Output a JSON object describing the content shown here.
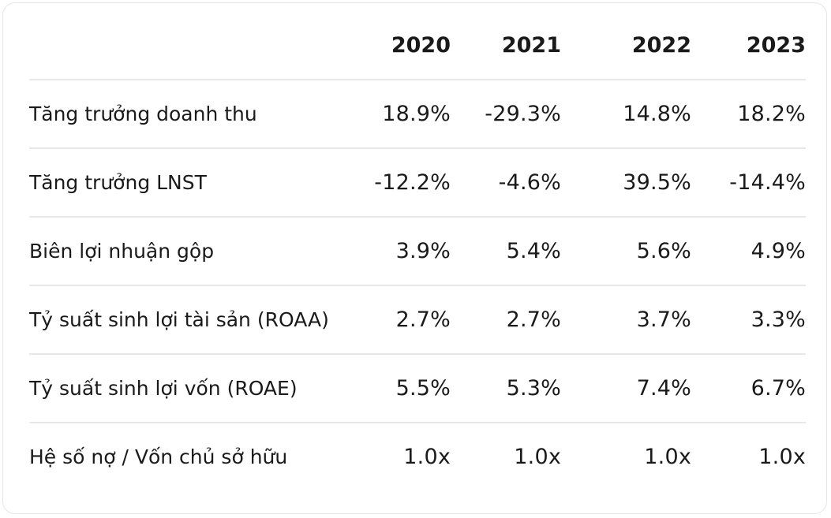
{
  "chart_data": {
    "type": "table",
    "columns": [
      "2020",
      "2021",
      "2022",
      "2023"
    ],
    "rows": [
      {
        "label": "Tăng trưởng doanh thu",
        "values": [
          "18.9%",
          "-29.3%",
          "14.8%",
          "18.2%"
        ]
      },
      {
        "label": "Tăng trưởng LNST",
        "values": [
          "-12.2%",
          "-4.6%",
          "39.5%",
          "-14.4%"
        ]
      },
      {
        "label": "Biên lợi nhuận gộp",
        "values": [
          "3.9%",
          "5.4%",
          "5.6%",
          "4.9%"
        ]
      },
      {
        "label": "Tỷ suất sinh lợi tài sản (ROAA)",
        "values": [
          "2.7%",
          "2.7%",
          "3.7%",
          "3.3%"
        ]
      },
      {
        "label": "Tỷ suất sinh lợi vốn (ROAE)",
        "values": [
          "5.5%",
          "5.3%",
          "7.4%",
          "6.7%"
        ]
      },
      {
        "label": "Hệ số nợ / Vốn chủ sở hữu",
        "values": [
          "1.0x",
          "1.0x",
          "1.0x",
          "1.0x"
        ]
      }
    ]
  }
}
